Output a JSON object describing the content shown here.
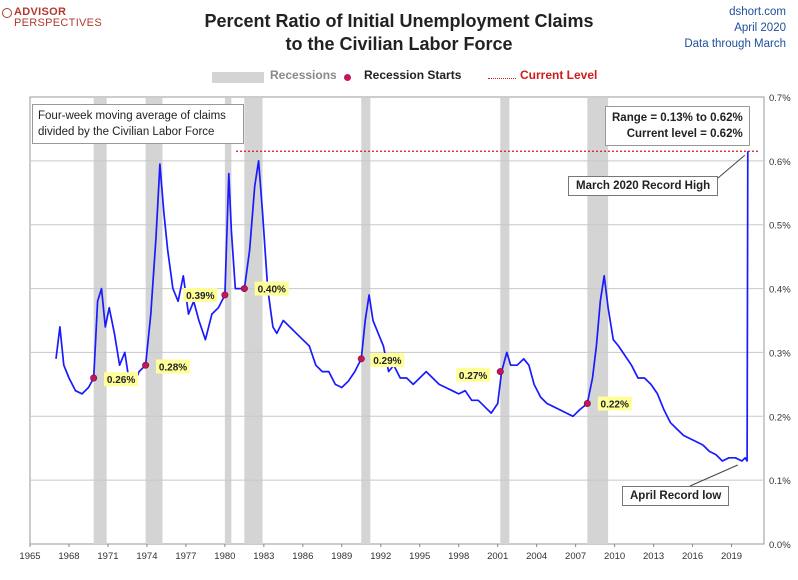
{
  "branding": {
    "logo_top": "ADVISOR",
    "logo_bottom": "PERSPECTIVES",
    "site": "dshort.com",
    "date": "April 2020",
    "data_note": "Data through March"
  },
  "chart_data": {
    "type": "line",
    "title_line1": "Percent Ratio of Initial Unemployment Claims",
    "title_line2": "to the Civilian Labor Force",
    "legend": {
      "recessions": "Recessions",
      "recession_starts": "Recession Starts",
      "current_level": "Current Level"
    },
    "note_line1": "Four-week moving average of claims",
    "note_line2": "divided by the Civilian Labor Force",
    "range_line1": "Range = 0.13% to 0.62%",
    "range_line2": "Current level = 0.62%",
    "record_high_label": "March 2020 Record High",
    "record_low_label": "April Record low",
    "xlim": [
      1965,
      2021.5
    ],
    "ylim": [
      0,
      0.7
    ],
    "x_ticks": [
      1965,
      1968,
      1971,
      1974,
      1977,
      1980,
      1983,
      1986,
      1989,
      1992,
      1995,
      1998,
      2001,
      2004,
      2007,
      2010,
      2013,
      2016,
      2019
    ],
    "x_tick_labels": [
      "1965",
      "1968",
      "1971",
      "1974",
      "1977",
      "1980",
      "1983",
      "1986",
      "1989",
      "1992",
      "1995",
      "1998",
      "2001",
      "2004",
      "2007",
      "2010",
      "2013",
      "2016",
      "2019"
    ],
    "y_ticks": [
      0,
      0.1,
      0.2,
      0.3,
      0.4,
      0.5,
      0.6,
      0.7
    ],
    "y_tick_labels": [
      "0.0%",
      "0.1%",
      "0.2%",
      "0.3%",
      "0.4%",
      "0.5%",
      "0.6%",
      "0.7%"
    ],
    "current_level": 0.615,
    "recessions": [
      [
        1969.9,
        1970.9
      ],
      [
        1973.9,
        1975.2
      ],
      [
        1980.0,
        1980.5
      ],
      [
        1981.5,
        1982.9
      ],
      [
        1990.5,
        1991.2
      ],
      [
        2001.2,
        2001.9
      ],
      [
        2007.9,
        2009.5
      ]
    ],
    "recession_starts": [
      {
        "x": 1969.9,
        "y": 0.26,
        "label": "0.26%",
        "lx": 1970.7,
        "ly": 0.258
      },
      {
        "x": 1973.9,
        "y": 0.28,
        "label": "0.28%",
        "lx": 1974.7,
        "ly": 0.278
      },
      {
        "x": 1980.0,
        "y": 0.39,
        "label": "0.39%",
        "lx": 1976.8,
        "ly": 0.39
      },
      {
        "x": 1981.5,
        "y": 0.4,
        "label": "0.40%",
        "lx": 1982.3,
        "ly": 0.4
      },
      {
        "x": 1990.5,
        "y": 0.29,
        "label": "0.29%",
        "lx": 1991.2,
        "ly": 0.288
      },
      {
        "x": 2001.2,
        "y": 0.27,
        "label": "0.27%",
        "lx": 1997.8,
        "ly": 0.265
      },
      {
        "x": 2007.9,
        "y": 0.22,
        "label": "0.22%",
        "lx": 2008.7,
        "ly": 0.22
      }
    ],
    "series": [
      {
        "name": "Claims / Civilian Labor Force (%)",
        "x": [
          1967.0,
          1967.3,
          1967.6,
          1968.0,
          1968.5,
          1969.0,
          1969.5,
          1969.9,
          1970.2,
          1970.5,
          1970.8,
          1971.1,
          1971.5,
          1971.9,
          1972.3,
          1972.6,
          1973.0,
          1973.4,
          1973.9,
          1974.3,
          1974.7,
          1975.0,
          1975.3,
          1975.6,
          1976.0,
          1976.4,
          1976.8,
          1977.2,
          1977.6,
          1978.0,
          1978.5,
          1979.0,
          1979.5,
          1980.0,
          1980.3,
          1980.5,
          1980.8,
          1981.2,
          1981.5,
          1981.9,
          1982.3,
          1982.6,
          1982.9,
          1983.3,
          1983.7,
          1984.0,
          1984.5,
          1985.0,
          1985.5,
          1986.0,
          1986.5,
          1987.0,
          1987.5,
          1988.0,
          1988.5,
          1989.0,
          1989.5,
          1990.0,
          1990.5,
          1990.8,
          1991.1,
          1991.4,
          1991.8,
          1992.2,
          1992.6,
          1993.0,
          1993.5,
          1994.0,
          1994.5,
          1995.0,
          1995.5,
          1996.0,
          1996.5,
          1997.0,
          1997.5,
          1998.0,
          1998.5,
          1999.0,
          1999.5,
          2000.0,
          2000.5,
          2001.0,
          2001.3,
          2001.7,
          2002.0,
          2002.5,
          2003.0,
          2003.4,
          2003.8,
          2004.3,
          2004.8,
          2005.3,
          2005.8,
          2006.3,
          2006.8,
          2007.3,
          2007.9,
          2008.3,
          2008.6,
          2008.9,
          2009.2,
          2009.5,
          2009.9,
          2010.3,
          2010.8,
          2011.3,
          2011.8,
          2012.3,
          2012.8,
          2013.3,
          2013.8,
          2014.3,
          2014.8,
          2015.3,
          2015.8,
          2016.3,
          2016.8,
          2017.3,
          2017.8,
          2018.3,
          2018.8,
          2019.3,
          2019.8,
          2020.05,
          2020.2,
          2020.25
        ],
        "values": [
          0.29,
          0.34,
          0.28,
          0.26,
          0.24,
          0.235,
          0.245,
          0.26,
          0.38,
          0.4,
          0.34,
          0.37,
          0.33,
          0.28,
          0.3,
          0.26,
          0.25,
          0.27,
          0.28,
          0.36,
          0.48,
          0.595,
          0.52,
          0.46,
          0.4,
          0.38,
          0.42,
          0.36,
          0.38,
          0.35,
          0.32,
          0.36,
          0.37,
          0.39,
          0.58,
          0.49,
          0.4,
          0.4,
          0.4,
          0.46,
          0.56,
          0.6,
          0.52,
          0.4,
          0.34,
          0.33,
          0.35,
          0.34,
          0.33,
          0.32,
          0.31,
          0.28,
          0.27,
          0.27,
          0.25,
          0.245,
          0.255,
          0.27,
          0.29,
          0.35,
          0.39,
          0.35,
          0.33,
          0.31,
          0.27,
          0.28,
          0.26,
          0.26,
          0.25,
          0.26,
          0.27,
          0.26,
          0.25,
          0.245,
          0.24,
          0.235,
          0.24,
          0.225,
          0.225,
          0.215,
          0.205,
          0.22,
          0.27,
          0.3,
          0.28,
          0.28,
          0.29,
          0.28,
          0.25,
          0.23,
          0.22,
          0.215,
          0.21,
          0.205,
          0.2,
          0.21,
          0.22,
          0.26,
          0.31,
          0.38,
          0.42,
          0.37,
          0.32,
          0.31,
          0.295,
          0.28,
          0.26,
          0.26,
          0.25,
          0.235,
          0.21,
          0.19,
          0.18,
          0.17,
          0.165,
          0.16,
          0.155,
          0.145,
          0.14,
          0.13,
          0.135,
          0.135,
          0.13,
          0.135,
          0.13,
          0.615
        ]
      }
    ]
  }
}
